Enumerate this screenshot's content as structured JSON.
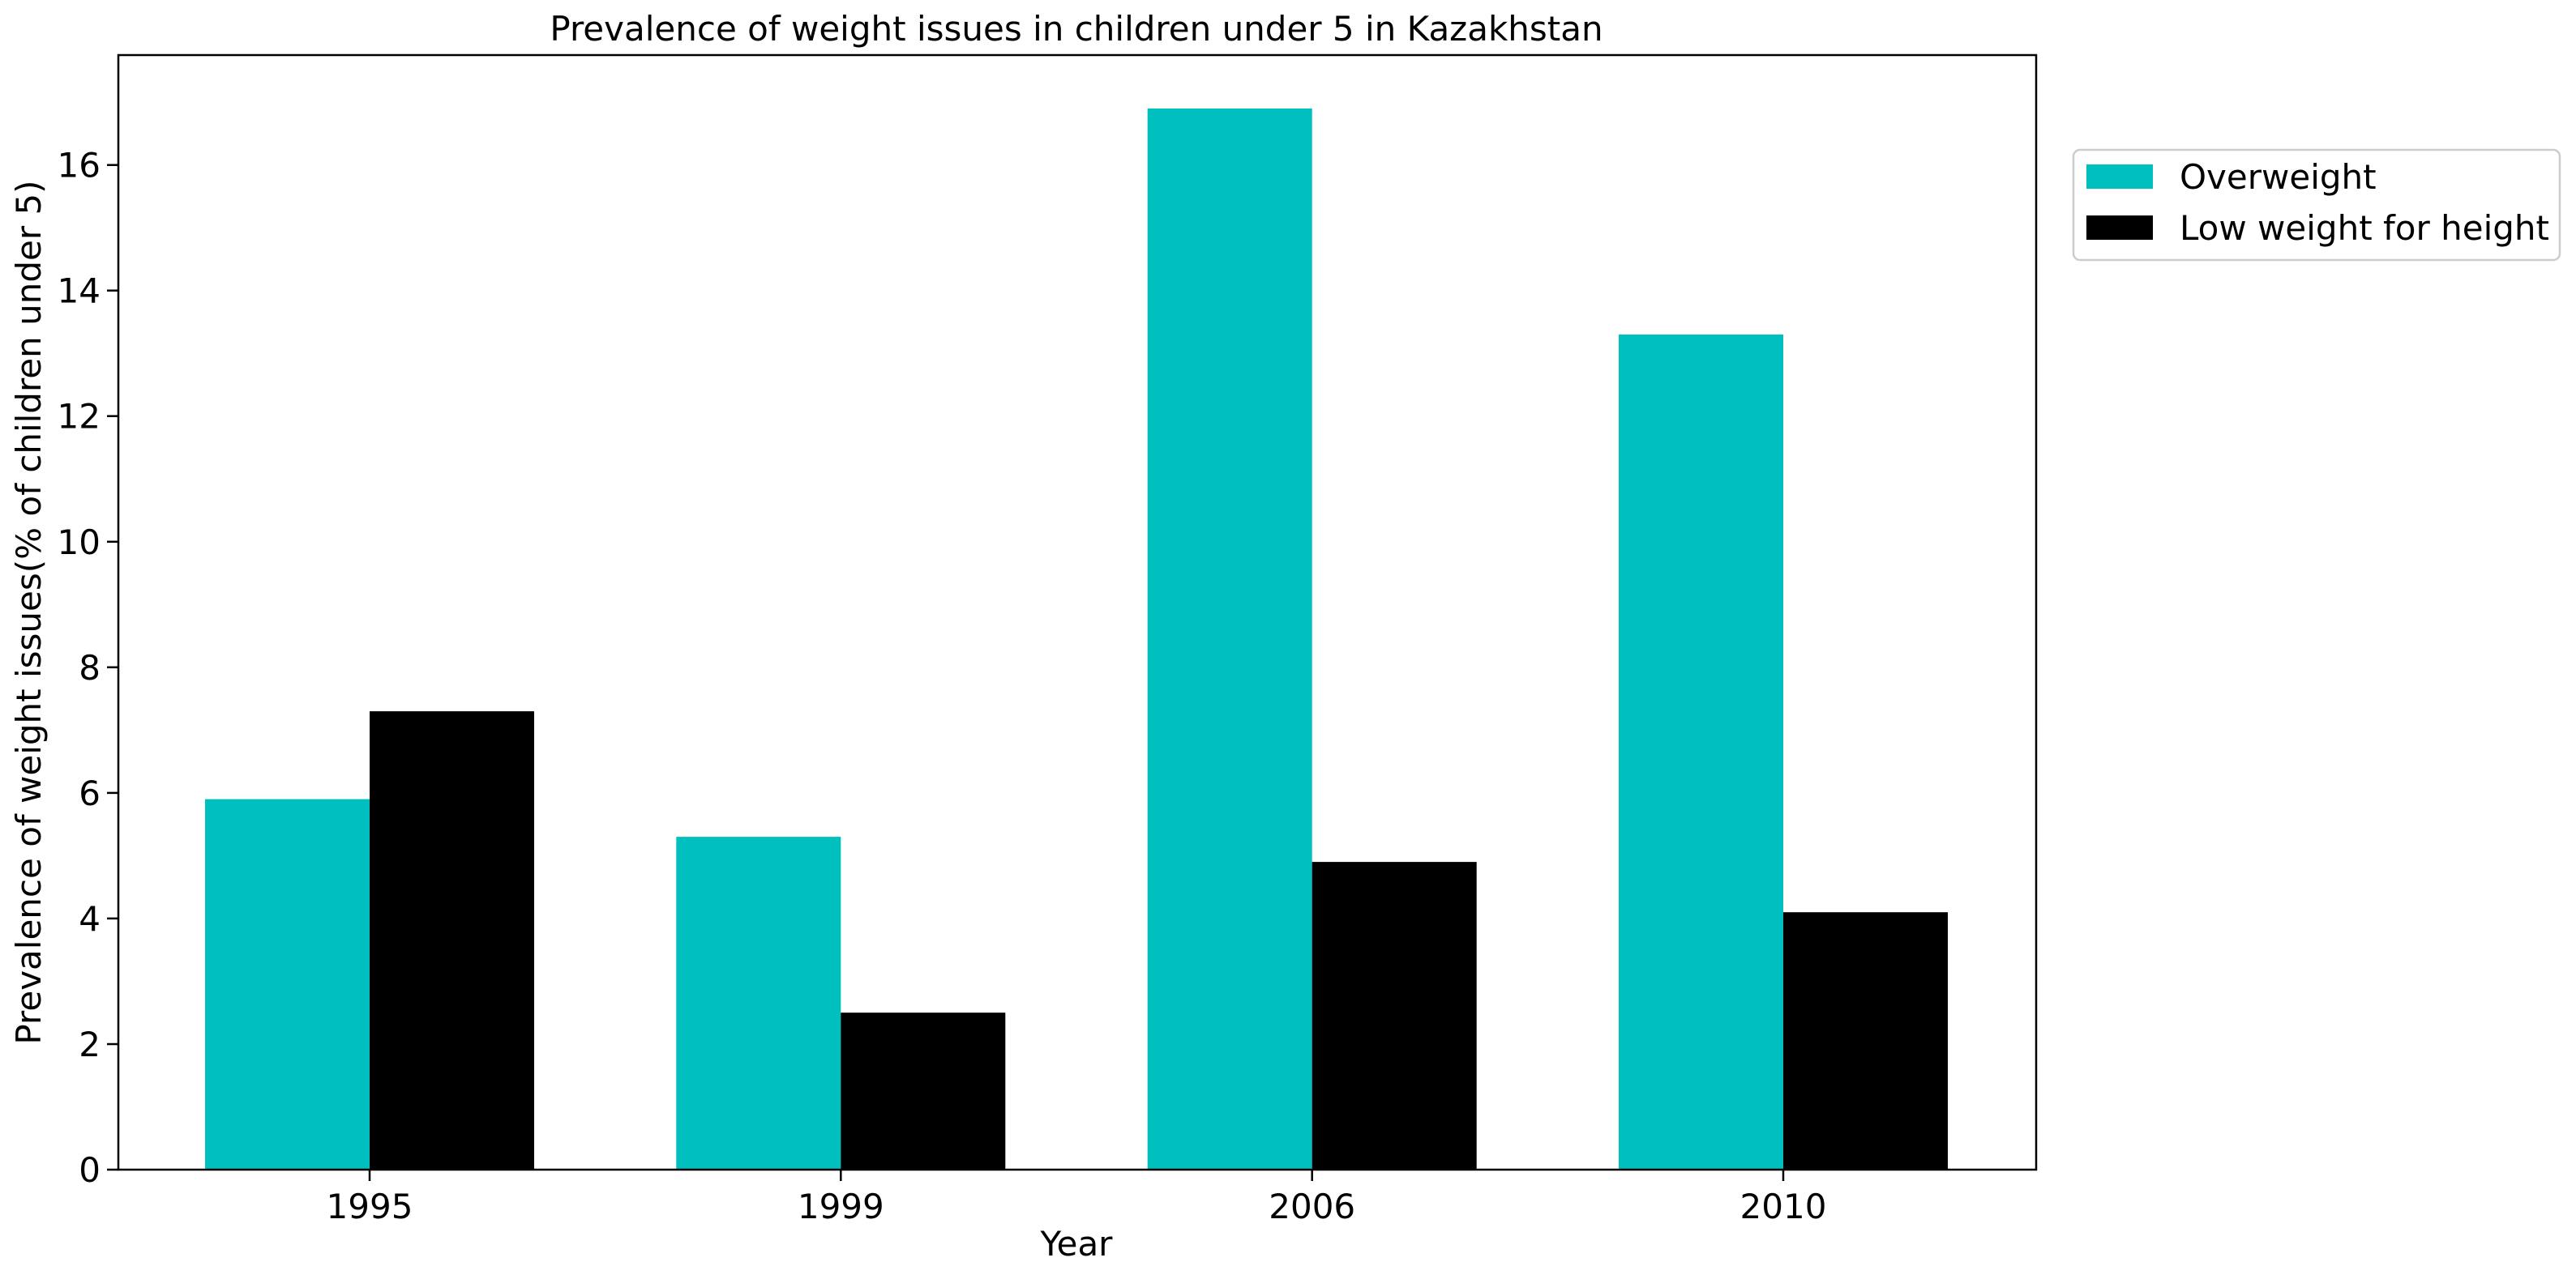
{
  "chart_data": {
    "type": "bar",
    "title": "Prevalence of weight issues in children under 5 in Kazakhstan",
    "xlabel": "Year",
    "ylabel": "Prevalence of weight issues(% of children under 5)",
    "categories": [
      "1995",
      "1999",
      "2006",
      "2010"
    ],
    "series": [
      {
        "name": "Overweight",
        "color": "#00bfbf",
        "values": [
          5.9,
          5.3,
          16.9,
          13.3
        ]
      },
      {
        "name": "Low weight for height",
        "color": "#000000",
        "values": [
          7.3,
          2.5,
          4.9,
          4.1
        ]
      }
    ],
    "ylim": [
      0,
      17.75
    ],
    "yticks": [
      "0",
      "2",
      "4",
      "6",
      "8",
      "10",
      "12",
      "14",
      "16"
    ],
    "grid": false,
    "legend_position": "outside-right-top"
  }
}
